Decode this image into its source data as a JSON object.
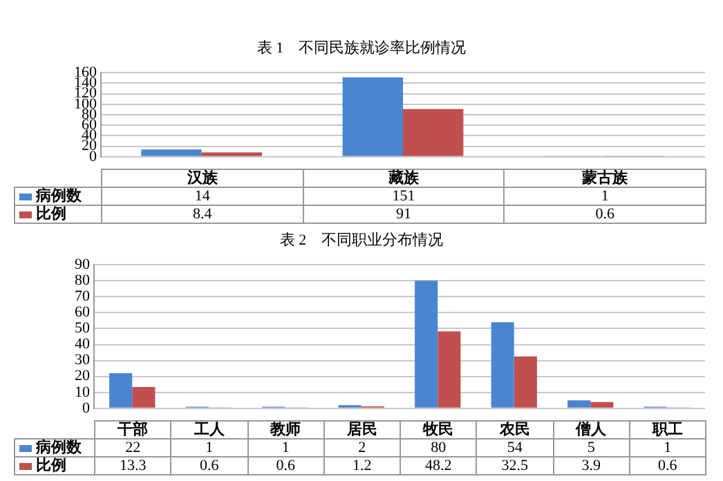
{
  "chart_data": [
    {
      "type": "bar",
      "title": "表 1　不同民族就诊率比例情况",
      "categories": [
        "汉族",
        "藏族",
        "蒙古族"
      ],
      "series": [
        {
          "name": "病例数",
          "color": "#4a86d0",
          "values": [
            14,
            151,
            1
          ]
        },
        {
          "name": "比例",
          "color": "#c0504d",
          "values": [
            8.4,
            91,
            0.6
          ]
        }
      ],
      "ylim": [
        0,
        160
      ],
      "yticks": [
        0,
        20,
        40,
        60,
        80,
        100,
        120,
        140,
        160
      ],
      "grid": "y",
      "legend": "left",
      "data_labels": true
    },
    {
      "type": "bar",
      "title": "表 2　不同职业分布情况",
      "categories": [
        "干部",
        "工人",
        "教师",
        "居民",
        "牧民",
        "农民",
        "僧人",
        "职工"
      ],
      "series": [
        {
          "name": "病例数",
          "color": "#4a86d0",
          "values": [
            22,
            1,
            1,
            2,
            80,
            54,
            5,
            1
          ]
        },
        {
          "name": "比例",
          "color": "#c0504d",
          "values": [
            13.3,
            0.6,
            0.6,
            1.2,
            48.2,
            32.5,
            3.9,
            0.6
          ]
        }
      ],
      "ylim": [
        0,
        90
      ],
      "yticks": [
        0,
        10,
        20,
        30,
        40,
        50,
        60,
        70,
        80,
        90
      ],
      "grid": "y",
      "legend": "left",
      "data_labels": true
    }
  ]
}
